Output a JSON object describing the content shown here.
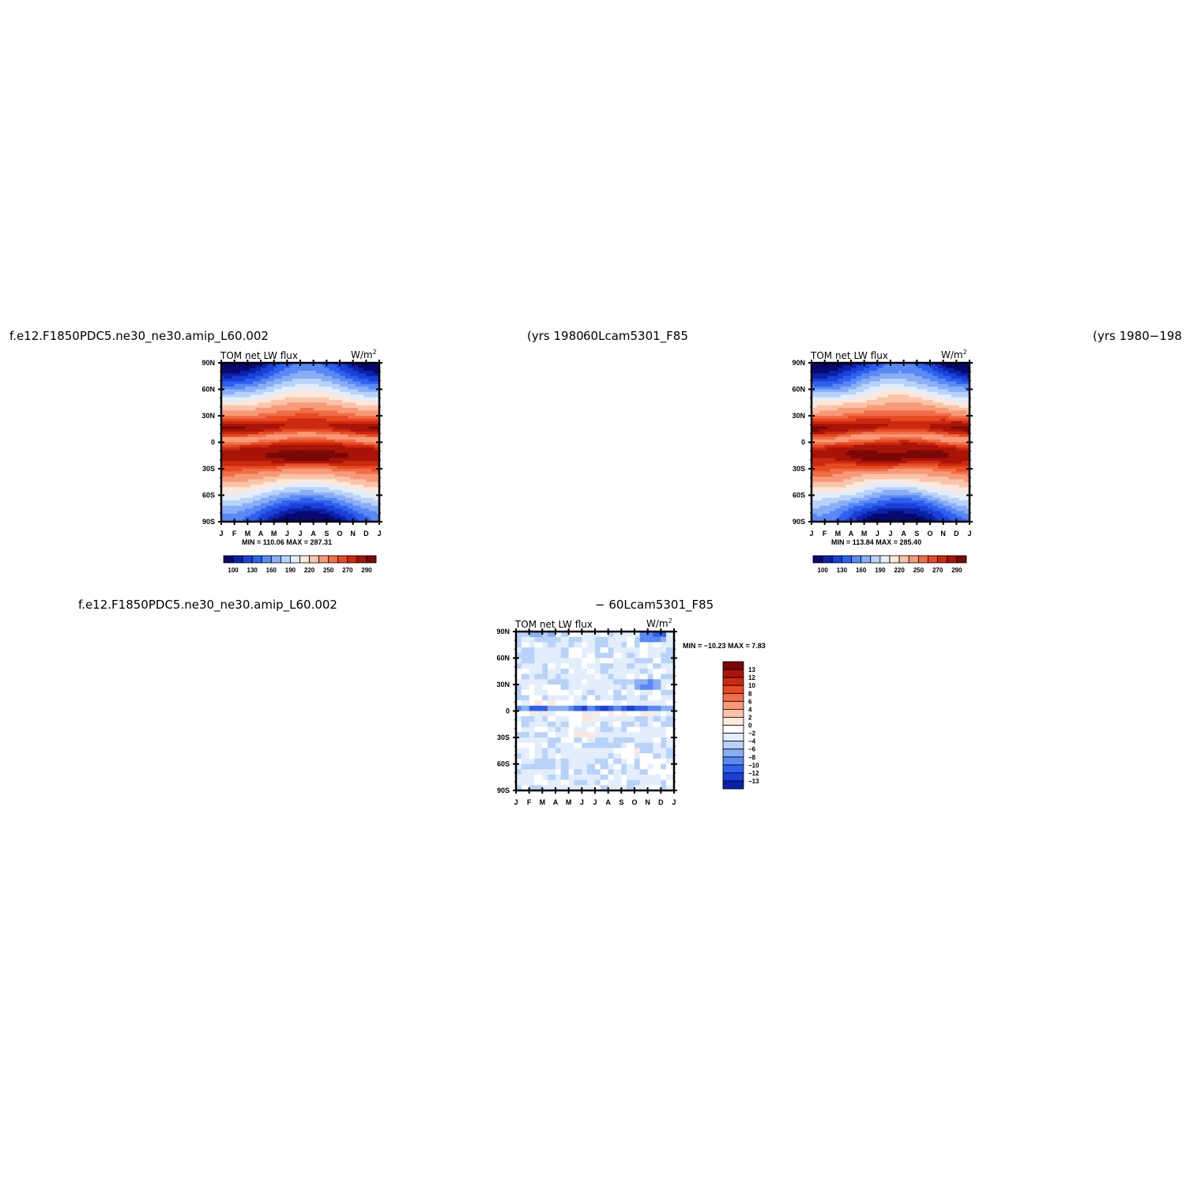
{
  "titles": {
    "top_left_case": "f.e12.F1850PDC5.ne30_ne30.amip_L60.002",
    "top_mid_years": "(yrs 1980",
    "top_mid_case": "60Lcam5301_F85",
    "top_right_years": "(yrs 1980−198",
    "bottom_left_case": "f.e12.F1850PDC5.ne30_ne30.amip_L60.002",
    "bottom_mid_diff": "− 60Lcam5301_F85"
  },
  "panels": [
    {
      "label": "TOM net LW flux",
      "units": "W/m",
      "units_sup": "2",
      "minmax": "MIN = 110.06  MAX = 287.31"
    },
    {
      "label": "TOM net LW flux",
      "units": "W/m",
      "units_sup": "2",
      "minmax": "MIN = 113.84  MAX = 285.40"
    },
    {
      "label": "TOM net LW flux",
      "units": "W/m",
      "units_sup": "2",
      "minmax": "MIN = −10.23  MAX =    7.83"
    }
  ],
  "chart_data": [
    {
      "type": "heatmap",
      "title": "TOM net LW flux",
      "units": "W/m2",
      "x_categories": [
        "J",
        "F",
        "M",
        "A",
        "M",
        "J",
        "J",
        "A",
        "S",
        "O",
        "N",
        "D",
        "J"
      ],
      "y_ticks": [
        "90N",
        "60N",
        "30N",
        "0",
        "30S",
        "60S",
        "90S"
      ],
      "ylim": [
        -90,
        90
      ],
      "min": 110.06,
      "max": 287.31,
      "contour_levels": [
        100,
        115,
        130,
        145,
        160,
        175,
        190,
        205,
        220,
        235,
        250,
        260,
        270,
        280,
        290
      ],
      "colorbar_labels": [
        "100",
        "130",
        "160",
        "190",
        "220",
        "250",
        "270",
        "290"
      ]
    },
    {
      "type": "heatmap",
      "title": "TOM net LW flux",
      "units": "W/m2",
      "x_categories": [
        "J",
        "F",
        "M",
        "A",
        "M",
        "J",
        "J",
        "A",
        "S",
        "O",
        "N",
        "D",
        "J"
      ],
      "y_ticks": [
        "90N",
        "60N",
        "30N",
        "0",
        "30S",
        "60S",
        "90S"
      ],
      "ylim": [
        -90,
        90
      ],
      "min": 113.84,
      "max": 285.4,
      "contour_levels": [
        100,
        115,
        130,
        145,
        160,
        175,
        190,
        205,
        220,
        235,
        250,
        260,
        270,
        280,
        290
      ],
      "colorbar_labels": [
        "100",
        "130",
        "160",
        "190",
        "220",
        "250",
        "270",
        "290"
      ]
    },
    {
      "type": "heatmap",
      "title": "TOM net LW flux",
      "units": "W/m2",
      "x_categories": [
        "J",
        "F",
        "M",
        "A",
        "M",
        "J",
        "J",
        "A",
        "S",
        "O",
        "N",
        "D",
        "J"
      ],
      "y_ticks": [
        "90N",
        "60N",
        "30N",
        "0",
        "30S",
        "60S",
        "90S"
      ],
      "ylim": [
        -90,
        90
      ],
      "min": -10.23,
      "max": 7.83,
      "contour_levels": [
        -13,
        -12,
        -10,
        -8,
        -6,
        -4,
        -2,
        0,
        2,
        4,
        6,
        8,
        10,
        12,
        13
      ],
      "colorbar_labels": [
        "13",
        "12",
        "10",
        "8",
        "6",
        "4",
        "2",
        "0",
        "−2",
        "−4",
        "−6",
        "−8",
        "−10",
        "−12",
        "−13"
      ]
    }
  ],
  "colors": {
    "abs_scale": [
      "#08086e",
      "#0a22a8",
      "#1a40d8",
      "#2e60ee",
      "#5a88f4",
      "#88aef6",
      "#b8d2fa",
      "#e2eefc",
      "#fde8dc",
      "#fbc4a8",
      "#f79a78",
      "#f06e48",
      "#e84a22",
      "#cc2a0e",
      "#a81408",
      "#7a0806"
    ],
    "diff_scale": [
      "#7a0806",
      "#a81408",
      "#cc2a0e",
      "#e84a22",
      "#f06e48",
      "#f79a78",
      "#fbc4a8",
      "#fde8dc",
      "#ffffff",
      "#e2eefc",
      "#b8d2fa",
      "#88aef6",
      "#5a88f4",
      "#2e60ee",
      "#1a40d8",
      "#0a22a8",
      "#08086e"
    ]
  }
}
